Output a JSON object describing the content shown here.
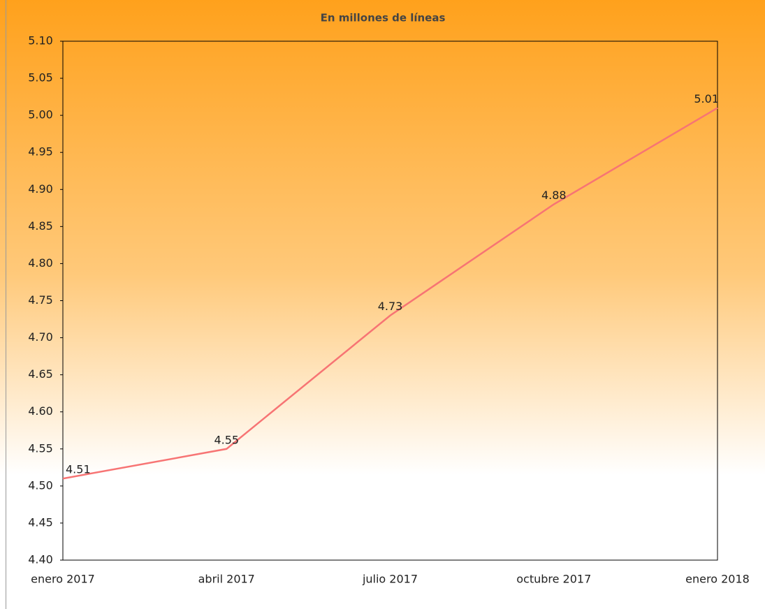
{
  "chart_data": {
    "type": "line",
    "title": "En millones de líneas",
    "categories": [
      "enero 2017",
      "abril 2017",
      "julio 2017",
      "octubre 2017",
      "enero 2018"
    ],
    "series": [
      {
        "name": "líneas",
        "color": "#f77474",
        "values": [
          4.51,
          4.55,
          4.73,
          4.88,
          5.01
        ]
      }
    ],
    "ylim": [
      4.4,
      5.1
    ],
    "yticks": [
      {
        "value": 4.4,
        "label": "4.40"
      },
      4.45,
      {
        "value": 4.5,
        "label": "4.50"
      },
      4.55,
      {
        "value": 4.6,
        "label": "4.60"
      },
      4.65,
      {
        "value": 4.7,
        "label": "4.70"
      },
      4.75,
      {
        "value": 4.8,
        "label": "4.80"
      },
      4.85,
      {
        "value": 4.9,
        "label": "4.90"
      },
      4.95,
      {
        "value": 5,
        "label": "5.00"
      },
      5.05,
      {
        "value": 5.1,
        "label": "5.10"
      }
    ]
  }
}
